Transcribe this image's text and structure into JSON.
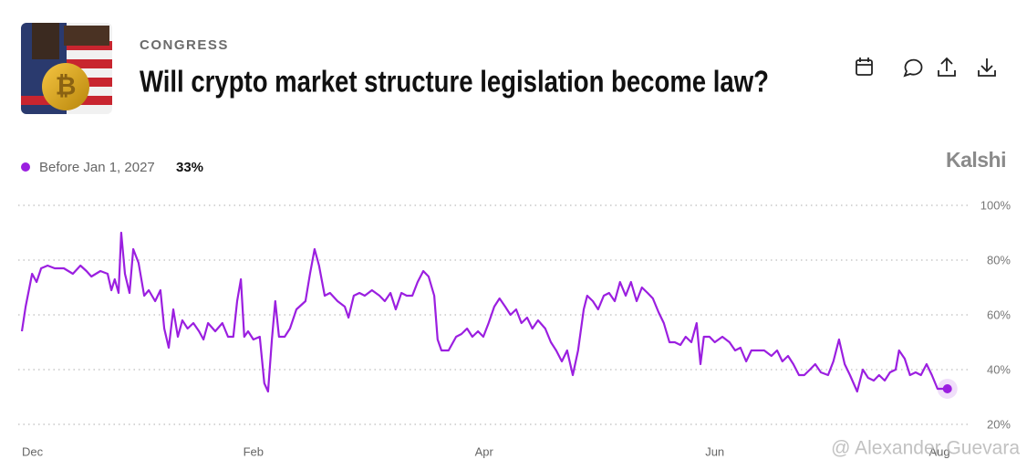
{
  "chart_data": {
    "type": "line",
    "section": "CONGRESS",
    "title": "Will crypto market structure legislation become law?",
    "brand": "Kalshi",
    "watermark": "@ Alexander Guevara",
    "x": [
      0,
      1.0,
      2.7,
      3.9,
      5.1,
      6.8,
      8.7,
      11.1,
      13.5,
      15.5,
      17.1,
      18.4,
      20.8,
      22.7,
      23.7,
      24.6,
      25.6,
      26.3,
      27.3,
      28.5,
      29.5,
      30.9,
      32.4,
      33.6,
      35.3,
      36.7,
      37.7,
      38.9,
      40.1,
      41.3,
      42.5,
      43.9,
      45.4,
      46.9,
      48.1,
      49.3,
      51.2,
      53.1,
      54.6,
      56.0,
      57.0,
      58.0,
      58.9,
      59.9,
      61.3,
      63.0,
      64.2,
      65.2,
      66.2,
      67.1,
      68.1,
      69.6,
      71.0,
      72.7,
      75.1,
      76.3,
      77.5,
      78.7,
      80.2,
      81.6,
      83.6,
      85.5,
      86.5,
      87.9,
      89.4,
      90.8,
      92.7,
      94.7,
      96.1,
      97.6,
      99.0,
      100.5,
      101.9,
      103.4,
      104.8,
      106.3,
      107.7,
      109.2,
      110.1,
      111.1,
      113.0,
      115.0,
      116.4,
      117.9,
      119.3,
      120.8,
      122.2,
      123.6,
      125.1,
      126.5,
      128.0,
      129.4,
      130.9,
      132.3,
      133.8,
      135.2,
      136.7,
      138.6,
      140.1,
      141.5,
      143.0,
      144.4,
      145.9,
      147.3,
      148.8,
      149.7,
      151.2,
      152.6,
      154.1,
      155.5,
      157.0,
      158.4,
      159.9,
      161.3,
      162.8,
      164.2,
      165.7,
      167.1,
      168.6,
      170.0,
      171.5,
      172.9,
      174.4,
      175.8,
      177.3,
      178.7,
      179.7,
      180.6,
      182.1,
      183.5,
      185.5,
      187.4,
      188.9,
      190.3,
      191.8,
      193.2,
      194.6,
      196.6,
      198.5,
      200.0,
      201.4,
      202.9,
      204.3,
      205.8,
      207.2,
      208.7,
      210.1,
      211.6,
      213.5,
      214.9,
      216.4,
      217.9,
      219.3,
      221.2,
      222.7,
      224.1,
      225.6,
      227.0,
      228.5,
      229.9,
      231.4,
      232.3,
      233.8,
      235.2,
      236.7,
      238.1,
      239.6,
      241.0,
      242.5,
      243.9,
      245.1
    ],
    "series": [
      {
        "name": "Before Jan 1, 2027",
        "color": "#9b1fe0",
        "current_label": "33%",
        "values": [
          54,
          63,
          75,
          72,
          77,
          78,
          77,
          77,
          75,
          78,
          76,
          74,
          76,
          75,
          69,
          73,
          68,
          90,
          75,
          68,
          84,
          79,
          67,
          69,
          65,
          69,
          55,
          48,
          62,
          52,
          58,
          55,
          57,
          54,
          51,
          57,
          54,
          57,
          52,
          52,
          65,
          73,
          52,
          54,
          51,
          52,
          35,
          32,
          51,
          65,
          52,
          52,
          55,
          62,
          65,
          75,
          84,
          78,
          67,
          68,
          65,
          63,
          59,
          67,
          68,
          67,
          69,
          67,
          65,
          68,
          62,
          68,
          67,
          67,
          72,
          76,
          74,
          67,
          51,
          47,
          47,
          52,
          53,
          55,
          52,
          54,
          52,
          57,
          63,
          66,
          63,
          60,
          62,
          57,
          59,
          55,
          58,
          55,
          50,
          47,
          43,
          47,
          38,
          47,
          62,
          67,
          65,
          62,
          67,
          68,
          65,
          72,
          67,
          72,
          65,
          70,
          68,
          66,
          61,
          57,
          50,
          50,
          49,
          52,
          50,
          57,
          42,
          52,
          52,
          50,
          52,
          50,
          47,
          48,
          43,
          47,
          47,
          47,
          45,
          47,
          43,
          45,
          42,
          38,
          38,
          40,
          42,
          39,
          38,
          43,
          51,
          42,
          38,
          32,
          40,
          37,
          36,
          38,
          36,
          39,
          40,
          47,
          44,
          38,
          39,
          38,
          42,
          38,
          33,
          33,
          33
        ]
      }
    ],
    "xlim": [
      0,
      247
    ],
    "xticks": [
      {
        "value": 0,
        "label": "Dec"
      },
      {
        "value": 61.3,
        "label": "Feb"
      },
      {
        "value": 122.4,
        "label": "Apr"
      },
      {
        "value": 183.5,
        "label": "Jun"
      },
      {
        "value": 243,
        "label": "Aug"
      }
    ],
    "ylim": [
      20,
      100
    ],
    "yticks": [
      {
        "value": 20,
        "label": "20%"
      },
      {
        "value": 40,
        "label": "40%"
      },
      {
        "value": 60,
        "label": "60%"
      },
      {
        "value": 80,
        "label": "80%"
      },
      {
        "value": 100,
        "label": "100%"
      }
    ],
    "grid": true
  }
}
